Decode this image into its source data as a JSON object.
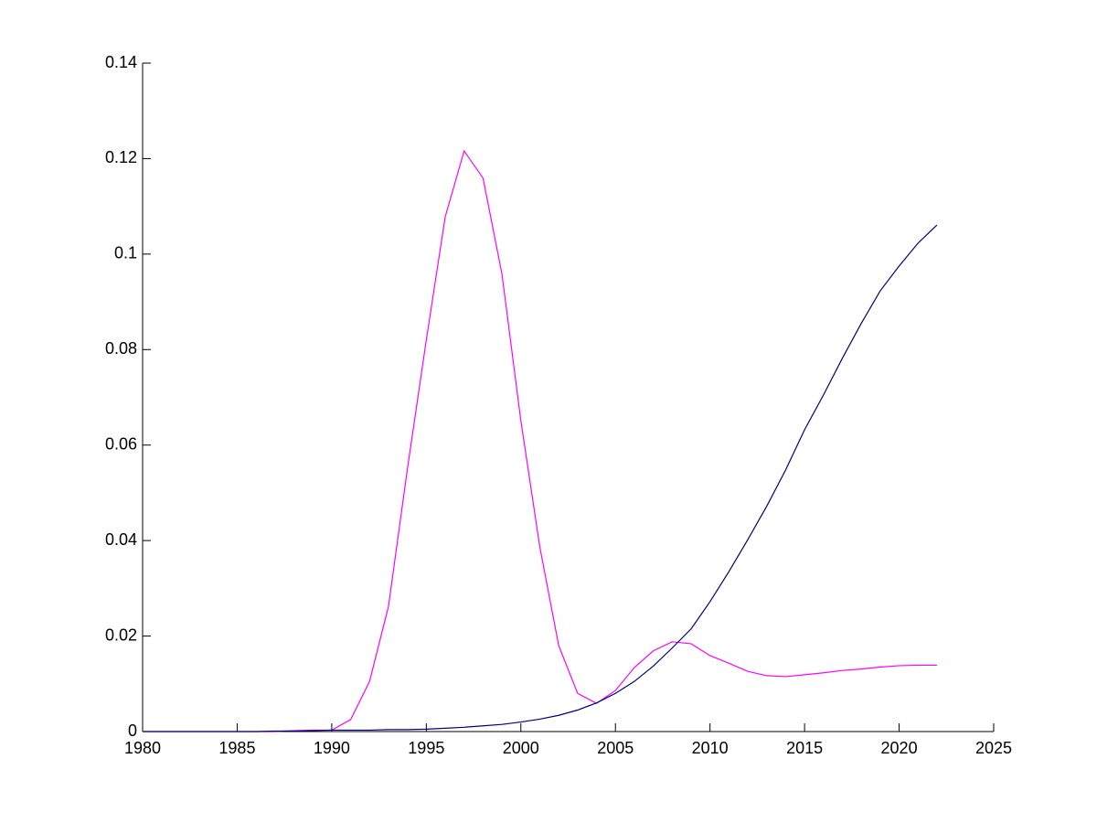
{
  "chart_data": {
    "type": "line",
    "x": [
      1980,
      1981,
      1982,
      1983,
      1984,
      1985,
      1986,
      1987,
      1988,
      1989,
      1990,
      1991,
      1992,
      1993,
      1994,
      1995,
      1996,
      1997,
      1998,
      1999,
      2000,
      2001,
      2002,
      2003,
      2004,
      2005,
      2006,
      2007,
      2008,
      2009,
      2010,
      2011,
      2012,
      2013,
      2014,
      2015,
      2016,
      2017,
      2018,
      2019,
      2020,
      2021,
      2022
    ],
    "series": [
      {
        "color": "#ff00ff",
        "values": [
          0,
          0,
          0,
          0,
          0,
          0,
          0,
          0,
          0.0002,
          0.0003,
          0.0003,
          0.0025,
          0.0105,
          0.0262,
          0.055,
          0.082,
          0.1078,
          0.1216,
          0.1159,
          0.0958,
          0.0651,
          0.0387,
          0.018,
          0.008,
          0.0059,
          0.0086,
          0.0134,
          0.0169,
          0.0188,
          0.0184,
          0.0159,
          0.0143,
          0.0126,
          0.0117,
          0.0115,
          0.0119,
          0.0123,
          0.0128,
          0.0131,
          0.0135,
          0.0138,
          0.0139,
          0.0139
        ]
      },
      {
        "color": "#000080",
        "values": [
          0,
          0,
          0,
          0,
          0,
          0,
          0,
          0.0001,
          0.0001,
          0.0002,
          0.0003,
          0.0003,
          0.0003,
          0.0004,
          0.0004,
          0.0005,
          0.0007,
          0.0009,
          0.0012,
          0.0015,
          0.002,
          0.0026,
          0.0034,
          0.0045,
          0.006,
          0.008,
          0.0105,
          0.0137,
          0.0175,
          0.0215,
          0.0272,
          0.0335,
          0.0402,
          0.0472,
          0.0548,
          0.0632,
          0.0705,
          0.0782,
          0.0855,
          0.0923,
          0.0975,
          0.1023,
          0.1061
        ]
      }
    ],
    "xlim": [
      1980,
      2025
    ],
    "xticks": [
      1980,
      1985,
      1990,
      1995,
      2000,
      2005,
      2010,
      2015,
      2020,
      2025
    ],
    "ylim": [
      0,
      0.14
    ],
    "yticks": [
      0,
      0.02,
      0.04,
      0.06,
      0.08,
      0.1,
      0.12,
      0.14
    ]
  }
}
